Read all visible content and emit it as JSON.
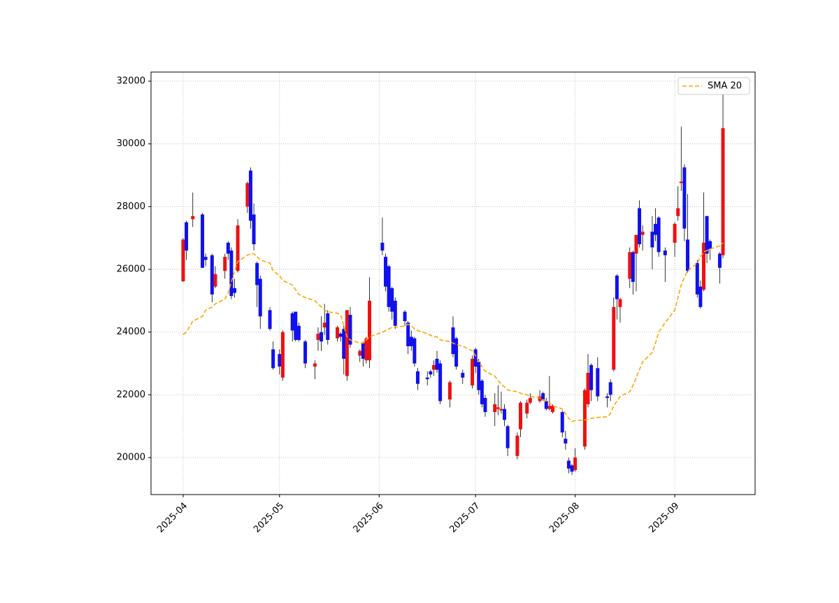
{
  "chart_data": {
    "type": "candlestick",
    "x": [
      "2025-04-01",
      "2025-04-02",
      "2025-04-04",
      "2025-04-07",
      "2025-04-08",
      "2025-04-10",
      "2025-04-11",
      "2025-04-14",
      "2025-04-15",
      "2025-04-16",
      "2025-04-17",
      "2025-04-18",
      "2025-04-21",
      "2025-04-22",
      "2025-04-23",
      "2025-04-24",
      "2025-04-25",
      "2025-04-28",
      "2025-04-29",
      "2025-05-01",
      "2025-05-02",
      "2025-05-05",
      "2025-05-06",
      "2025-05-07",
      "2025-05-09",
      "2025-05-12",
      "2025-05-13",
      "2025-05-14",
      "2025-05-15",
      "2025-05-16",
      "2025-05-19",
      "2025-05-20",
      "2025-05-21",
      "2025-05-22",
      "2025-05-23",
      "2025-05-26",
      "2025-05-27",
      "2025-05-28",
      "2025-05-29",
      "2025-06-02",
      "2025-06-03",
      "2025-06-04",
      "2025-06-05",
      "2025-06-06",
      "2025-06-09",
      "2025-06-10",
      "2025-06-11",
      "2025-06-12",
      "2025-06-13",
      "2025-06-16",
      "2025-06-17",
      "2025-06-18",
      "2025-06-19",
      "2025-06-20",
      "2025-06-23",
      "2025-06-24",
      "2025-06-25",
      "2025-06-27",
      "2025-06-30",
      "2025-07-01",
      "2025-07-02",
      "2025-07-03",
      "2025-07-04",
      "2025-07-07",
      "2025-07-08",
      "2025-07-09",
      "2025-07-10",
      "2025-07-11",
      "2025-07-14",
      "2025-07-15",
      "2025-07-17",
      "2025-07-18",
      "2025-07-21",
      "2025-07-22",
      "2025-07-23",
      "2025-07-24",
      "2025-07-25",
      "2025-07-28",
      "2025-07-29",
      "2025-07-30",
      "2025-07-31",
      "2025-08-01",
      "2025-08-04",
      "2025-08-05",
      "2025-08-06",
      "2025-08-08",
      "2025-08-11",
      "2025-08-12",
      "2025-08-13",
      "2025-08-14",
      "2025-08-15",
      "2025-08-18",
      "2025-08-19",
      "2025-08-20",
      "2025-08-21",
      "2025-08-22",
      "2025-08-25",
      "2025-08-26",
      "2025-08-27",
      "2025-08-29",
      "2025-09-01",
      "2025-09-02",
      "2025-09-03",
      "2025-09-04",
      "2025-09-05",
      "2025-09-08",
      "2025-09-09",
      "2025-09-10",
      "2025-09-11",
      "2025-09-12",
      "2025-09-15",
      "2025-09-16"
    ],
    "open": [
      25620,
      27500,
      27600,
      27750,
      26400,
      26450,
      25450,
      25950,
      26850,
      26600,
      25400,
      25950,
      28000,
      29150,
      27750,
      26200,
      25700,
      24700,
      23450,
      23300,
      22550,
      24600,
      24650,
      24200,
      23700,
      22900,
      23750,
      24000,
      24150,
      24600,
      23800,
      23950,
      24100,
      22600,
      24550,
      23250,
      23650,
      23100,
      23100,
      26850,
      26400,
      26100,
      25400,
      25000,
      24650,
      24300,
      23850,
      23800,
      22750,
      22550,
      22750,
      22800,
      23150,
      23000,
      21850,
      24150,
      23800,
      22700,
      22300,
      23450,
      23050,
      22450,
      21900,
      21450,
      21550,
      21500,
      21550,
      21000,
      20050,
      20900,
      21400,
      21750,
      21800,
      22050,
      21800,
      21550,
      21450,
      21450,
      20600,
      19900,
      19750,
      19600,
      20350,
      21700,
      22950,
      22850,
      21950,
      22400,
      22800,
      25800,
      24800,
      25700,
      26550,
      26500,
      27950,
      27100,
      27200,
      27450,
      27650,
      26600,
      26850,
      27700,
      28750,
      29250,
      26950,
      26200,
      25450,
      25350,
      27700,
      26900,
      26500,
      26450
    ],
    "high": [
      27000,
      27550,
      28450,
      27800,
      26500,
      26500,
      26100,
      26500,
      26900,
      26700,
      25700,
      27600,
      28800,
      29250,
      28100,
      26250,
      25800,
      24800,
      23700,
      23450,
      24050,
      24650,
      24650,
      24300,
      23750,
      23100,
      24150,
      24500,
      24900,
      24700,
      24200,
      24000,
      24200,
      24700,
      24800,
      23450,
      23700,
      23850,
      25750,
      27650,
      26500,
      26150,
      25450,
      25100,
      24700,
      24350,
      24050,
      23850,
      22850,
      22750,
      22800,
      23100,
      23400,
      23100,
      22450,
      24500,
      23850,
      22800,
      23250,
      23500,
      23150,
      22500,
      22000,
      22050,
      22300,
      22100,
      21700,
      21050,
      20800,
      21800,
      21850,
      22050,
      22150,
      22100,
      21900,
      22600,
      21700,
      21500,
      20850,
      20000,
      19800,
      20300,
      22200,
      23300,
      23000,
      23200,
      22050,
      22500,
      25100,
      25850,
      25100,
      26700,
      26600,
      27100,
      28200,
      27400,
      27700,
      27950,
      27700,
      26700,
      27500,
      28650,
      30550,
      29350,
      28400,
      26300,
      25650,
      28450,
      27700,
      26950,
      26550,
      31600
    ],
    "low": [
      25600,
      26300,
      27350,
      26050,
      26100,
      24950,
      25400,
      25700,
      26300,
      25050,
      25100,
      25900,
      27800,
      27300,
      26600,
      24800,
      24100,
      24050,
      22800,
      22650,
      22450,
      23700,
      23700,
      23700,
      22850,
      22500,
      23400,
      23400,
      23900,
      23600,
      23700,
      23700,
      22650,
      22450,
      23500,
      23050,
      22900,
      23000,
      22850,
      26450,
      25300,
      24650,
      24400,
      24100,
      24200,
      23300,
      23400,
      22900,
      22150,
      22300,
      22550,
      22600,
      22700,
      21700,
      21600,
      23200,
      22800,
      22350,
      22200,
      22700,
      22000,
      21600,
      21300,
      21000,
      21350,
      21400,
      21000,
      20050,
      19950,
      20650,
      21250,
      21700,
      21750,
      21800,
      21500,
      21500,
      21400,
      20650,
      20250,
      19500,
      19450,
      19550,
      20250,
      21600,
      21800,
      21800,
      21600,
      21800,
      22750,
      24400,
      24300,
      25400,
      25200,
      25300,
      26700,
      26600,
      26000,
      26900,
      26400,
      25600,
      26400,
      27550,
      28500,
      26900,
      25900,
      25100,
      24750,
      25300,
      26200,
      26300,
      25550,
      26350
    ],
    "close": [
      26950,
      26600,
      27700,
      26050,
      26300,
      25200,
      25850,
      26400,
      26500,
      25150,
      25250,
      27400,
      28750,
      27550,
      26800,
      25500,
      24500,
      24100,
      22850,
      22900,
      24000,
      24050,
      23750,
      23750,
      23000,
      23000,
      23950,
      23700,
      24300,
      23750,
      24150,
      23850,
      23150,
      24700,
      23600,
      23400,
      23150,
      23800,
      25000,
      26600,
      25450,
      24800,
      24650,
      24200,
      24350,
      23550,
      23550,
      23000,
      22350,
      22500,
      22650,
      22950,
      22800,
      21800,
      22400,
      23300,
      22900,
      22550,
      23150,
      22900,
      22150,
      21700,
      21450,
      21700,
      21600,
      21550,
      21200,
      20300,
      20700,
      21750,
      21750,
      21900,
      21950,
      21850,
      21550,
      21650,
      21650,
      20800,
      20450,
      19650,
      19550,
      20000,
      22150,
      22700,
      22150,
      21950,
      21900,
      22000,
      24800,
      25050,
      25050,
      26550,
      25600,
      27100,
      26800,
      27200,
      26700,
      27100,
      26550,
      26450,
      27450,
      27950,
      28800,
      27300,
      25950,
      25200,
      24800,
      26850,
      26500,
      26650,
      26050,
      30500
    ],
    "up_color": "#ee1111",
    "down_color": "#1111ee",
    "series": [
      {
        "name": "SMA 20",
        "color": "#ffa500",
        "style": "dashed",
        "values": [
          23920,
          24000,
          24350,
          24500,
          24700,
          24800,
          24900,
          25050,
          25250,
          25600,
          25950,
          26250,
          26450,
          26500,
          26500,
          26400,
          26300,
          26200,
          25950,
          25800,
          25650,
          25500,
          25350,
          25200,
          25100,
          25000,
          24900,
          24800,
          24700,
          24650,
          24600,
          24550,
          24200,
          23850,
          23750,
          23650,
          23650,
          23750,
          23850,
          24000,
          24050,
          24100,
          24150,
          24150,
          24200,
          24250,
          24200,
          24100,
          24050,
          23950,
          23900,
          23850,
          23850,
          23750,
          23700,
          23650,
          23600,
          23550,
          23400,
          23250,
          23050,
          22900,
          22750,
          22600,
          22450,
          22350,
          22250,
          22150,
          22100,
          22050,
          22000,
          21950,
          21900,
          21850,
          21800,
          21750,
          21650,
          21550,
          21400,
          21250,
          21150,
          21180,
          21200,
          21230,
          21250,
          21280,
          21300,
          21400,
          21650,
          21800,
          21950,
          22100,
          22300,
          22550,
          22800,
          23050,
          23350,
          23650,
          24000,
          24300,
          24700,
          25100,
          25500,
          25750,
          25950,
          26200,
          26400,
          26550,
          26600,
          26650,
          26750,
          26850
        ]
      }
    ],
    "xlim": [
      "2025-03-22",
      "2025-09-26"
    ],
    "xticks": [
      {
        "value": "2025-04-01",
        "label": "2025-04"
      },
      {
        "value": "2025-05-01",
        "label": "2025-05"
      },
      {
        "value": "2025-06-01",
        "label": "2025-06"
      },
      {
        "value": "2025-07-01",
        "label": "2025-07"
      },
      {
        "value": "2025-08-01",
        "label": "2025-08"
      },
      {
        "value": "2025-09-01",
        "label": "2025-09"
      }
    ],
    "ylim": [
      18820,
      32290
    ],
    "yticks": [
      20000,
      22000,
      24000,
      26000,
      28000,
      30000,
      32000
    ],
    "grid": true,
    "legend": "upper right"
  }
}
